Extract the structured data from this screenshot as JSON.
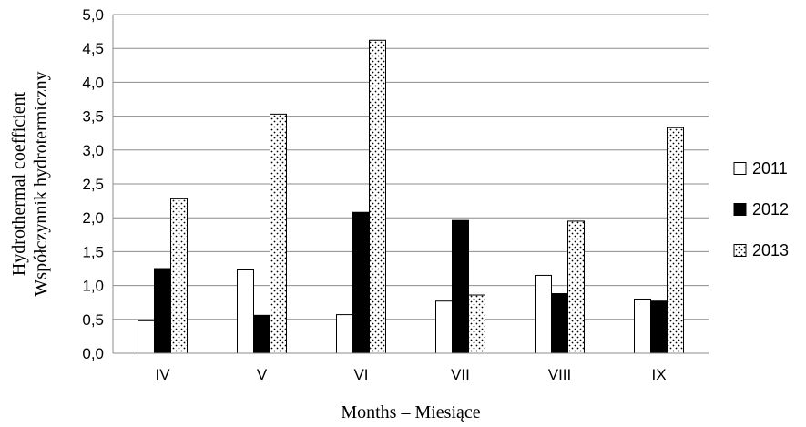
{
  "chart_data": {
    "type": "bar",
    "title": "",
    "xlabel": "Months – Miesiące",
    "ylabel_lines": [
      "Hydrothermal coefficient",
      "Współczynnik hydrotermiczny"
    ],
    "categories": [
      "IV",
      "V",
      "VI",
      "VII",
      "VIII",
      "IX"
    ],
    "ylim": [
      0,
      5
    ],
    "yticks": [
      "0,0",
      "0,5",
      "1,0",
      "1,5",
      "2,0",
      "2,5",
      "3,0",
      "3,5",
      "4,0",
      "4,5",
      "5,0"
    ],
    "grid": true,
    "legend_position": "right",
    "series": [
      {
        "name": "2011",
        "style": "white",
        "values": [
          0.48,
          1.23,
          0.57,
          0.77,
          1.15,
          0.8
        ]
      },
      {
        "name": "2012",
        "style": "black",
        "values": [
          1.25,
          0.56,
          2.08,
          1.96,
          0.88,
          0.77
        ]
      },
      {
        "name": "2013",
        "style": "dotted",
        "values": [
          2.28,
          3.53,
          4.62,
          0.86,
          1.95,
          3.33
        ]
      }
    ]
  }
}
